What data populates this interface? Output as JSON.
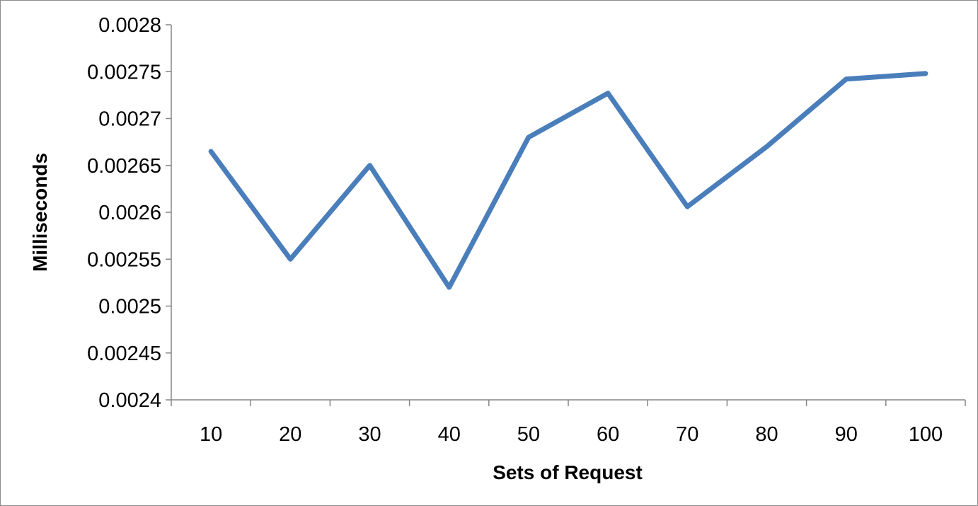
{
  "chart_data": {
    "type": "line",
    "title": "",
    "xlabel": "Sets of Request",
    "ylabel": "Milliseconds",
    "categories": [
      "10",
      "20",
      "30",
      "40",
      "50",
      "60",
      "70",
      "80",
      "90",
      "100"
    ],
    "series": [
      {
        "values": [
          0.002665,
          0.00255,
          0.00265,
          0.00252,
          0.00268,
          0.002727,
          0.002606,
          0.00267,
          0.002742,
          0.002748
        ],
        "color": "#4a7ebb"
      }
    ],
    "ylim": [
      0.0024,
      0.0028
    ],
    "yticks": [
      "0.0024",
      "0.00245",
      "0.0025",
      "0.00255",
      "0.0026",
      "0.00265",
      "0.0027",
      "0.00275",
      "0.0028"
    ],
    "grid": false,
    "legend": "none"
  }
}
